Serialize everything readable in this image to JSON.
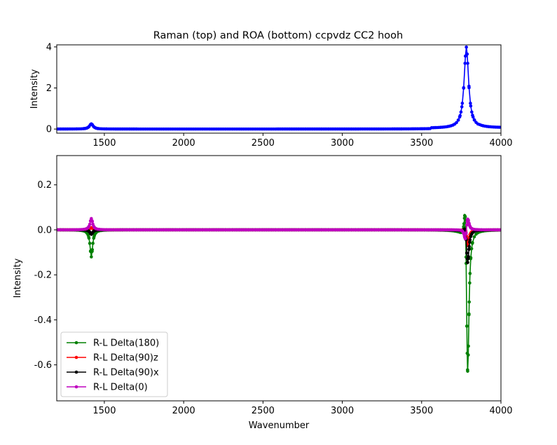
{
  "figure_title": "Raman (top) and ROA (bottom) ccpvdz CC2 hooh",
  "chart_data": [
    {
      "type": "line",
      "title": "Raman (top) and ROA (bottom) ccpvdz CC2 hooh",
      "xlabel": "",
      "ylabel": "Intensity",
      "xlim": [
        1200,
        4000
      ],
      "ylim": [
        -0.2,
        4.1
      ],
      "xticks": [
        1500,
        2000,
        2500,
        3000,
        3500,
        4000
      ],
      "yticks": [
        0,
        2,
        4
      ],
      "grid": false,
      "series": [
        {
          "color": "#0000ff",
          "peaks": [
            {
              "center": 1418,
              "width": 14,
              "height": 0.25
            },
            {
              "center": 3782,
              "width": 17,
              "height": 3.95
            }
          ],
          "baseline_steps": [
            {
              "from": 3560,
              "value": 0.04
            },
            {
              "from": 3860,
              "value": 0.06
            }
          ]
        }
      ]
    },
    {
      "type": "line",
      "title": "",
      "xlabel": "Wavenumber",
      "ylabel": "Intensity",
      "xlim": [
        1200,
        4000
      ],
      "ylim": [
        -0.76,
        0.33
      ],
      "xticks": [
        1500,
        2000,
        2500,
        3000,
        3500,
        4000
      ],
      "yticks": [
        0.2,
        0.0,
        -0.2,
        -0.4,
        -0.6
      ],
      "grid": false,
      "legend_position": "lower-left",
      "series": [
        {
          "name": "R-L Delta(180)",
          "color": "#008000",
          "peaks": [
            {
              "center": 1418,
              "width": 10,
              "height": -0.12
            },
            {
              "center": 3776,
              "width": 9,
              "height": 0.28
            },
            {
              "center": 3790,
              "width": 10,
              "height": -0.71
            }
          ]
        },
        {
          "name": "R-L Delta(90)z",
          "color": "#ff0000",
          "peaks": [
            {
              "center": 1418,
              "width": 10,
              "height": 0.01
            },
            {
              "center": 3778,
              "width": 9,
              "height": 0.03
            },
            {
              "center": 3790,
              "width": 10,
              "height": -0.08
            }
          ]
        },
        {
          "name": "R-L Delta(90)x",
          "color": "#000000",
          "peaks": [
            {
              "center": 1418,
              "width": 10,
              "height": -0.02
            },
            {
              "center": 3776,
              "width": 9,
              "height": 0.05
            },
            {
              "center": 3790,
              "width": 10,
              "height": -0.16
            }
          ]
        },
        {
          "name": "R-L Delta(0)",
          "color": "#bf00bf",
          "peaks": [
            {
              "center": 1418,
              "width": 10,
              "height": 0.05
            },
            {
              "center": 3776,
              "width": 9,
              "height": -0.06
            },
            {
              "center": 3790,
              "width": 10,
              "height": 0.065
            }
          ]
        }
      ]
    }
  ]
}
